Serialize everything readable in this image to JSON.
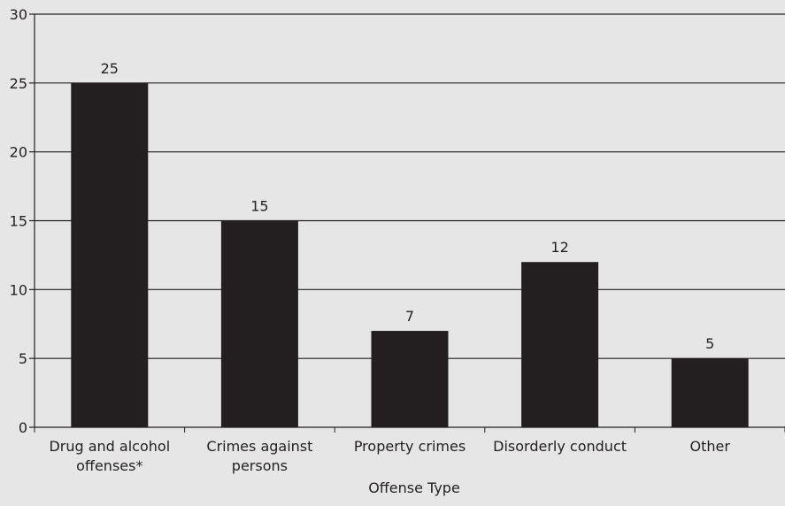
{
  "chart_data": {
    "type": "bar",
    "categories": [
      [
        "Drug and alcohol",
        "offenses*"
      ],
      [
        "Crimes against",
        "persons"
      ],
      [
        "Property crimes"
      ],
      [
        "Disorderly conduct"
      ],
      [
        "Other"
      ]
    ],
    "values": [
      25,
      15,
      7,
      12,
      5
    ],
    "data_labels": [
      "25",
      "15",
      "7",
      "12",
      "5"
    ],
    "yticks": [
      "0",
      "5",
      "10",
      "15",
      "20",
      "25",
      "30"
    ],
    "ylim": [
      0,
      30
    ],
    "ytick_step": 5,
    "xlabel": "Offense Type",
    "ylabel": "",
    "title": "",
    "grid": true,
    "legend": "none",
    "colors": {
      "background": "#e6e6e7",
      "bar": "#231f20",
      "gridline": "#231f20",
      "text": "#231f20"
    }
  }
}
